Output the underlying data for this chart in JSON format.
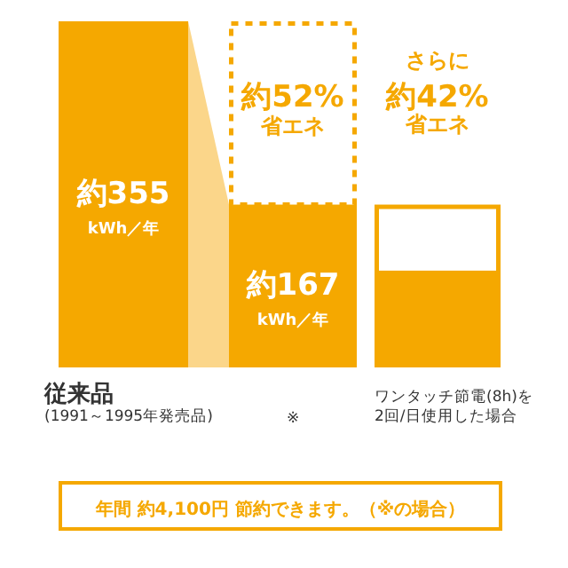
{
  "chart_data": {
    "type": "bar",
    "stacked": true,
    "categories": [
      "従来品\n(1991～1995年発売品)",
      "※",
      "ワンタッチ節電(8h)を2回/日使用した場合"
    ],
    "series": [
      {
        "color": "#f5a800",
        "values": [
          355,
          167,
          97
        ],
        "value_labels": [
          "約355\nkWh／年",
          "約167\nkWh／年",
          null
        ]
      },
      {
        "color": "#f5a800",
        "values": [
          null,
          188,
          null
        ],
        "line_style": "dashed"
      },
      {
        "color": "#f5a800",
        "values": [
          null,
          null,
          70
        ],
        "line_style": "solid"
      }
    ],
    "annotations": [
      "約52%",
      "省エネ",
      "さらに",
      "約42%",
      "省エネ",
      "年間 約4,100円 節約できます。（※の場合）"
    ]
  }
}
